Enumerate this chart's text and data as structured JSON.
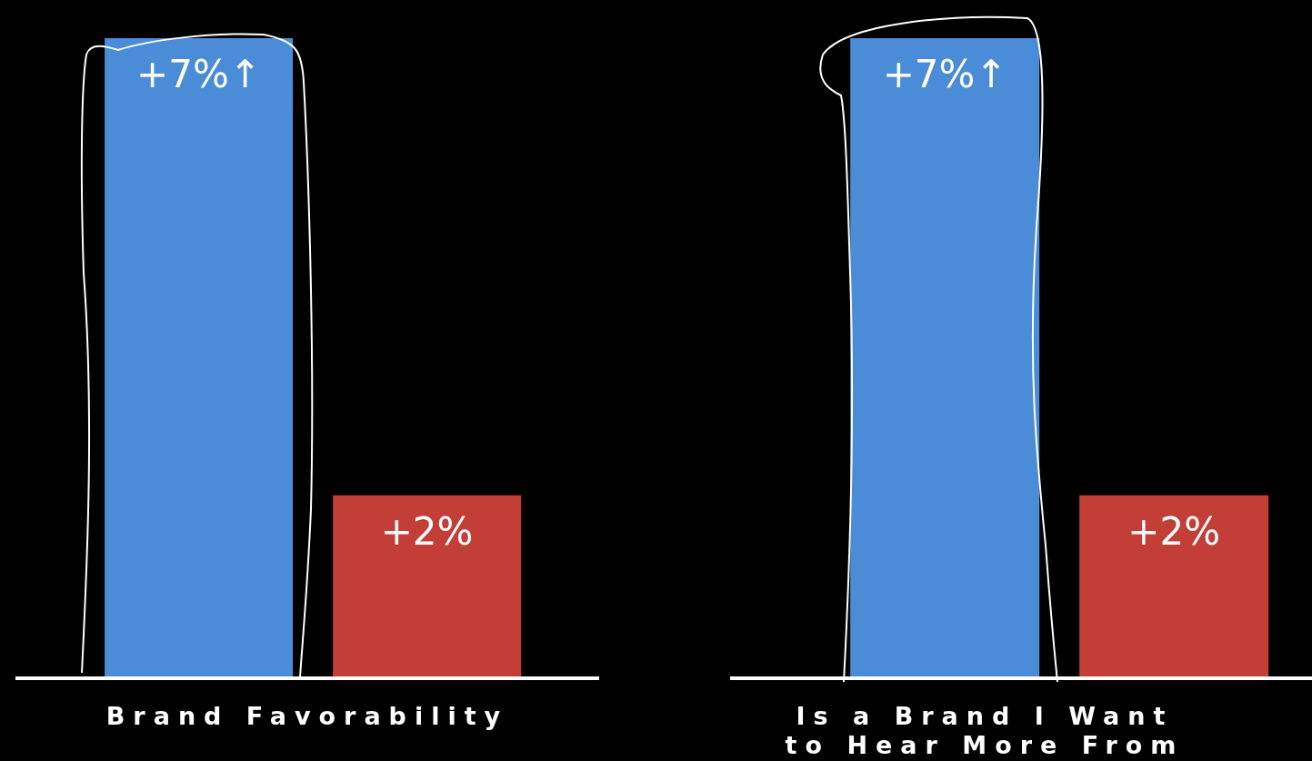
{
  "chart_data": [
    {
      "type": "bar",
      "xlabel": "Brand Favorability",
      "categories": [
        null,
        null
      ],
      "values": [
        7,
        2
      ],
      "colors": [
        "#4a8cd8",
        "#c23e36"
      ],
      "value_labels": [
        "+7%↑",
        "+2%"
      ]
    },
    {
      "type": "bar",
      "xlabel": "Is a Brand I Want to Hear More From",
      "categories": [
        null,
        null
      ],
      "values": [
        7,
        2
      ],
      "colors": [
        "#4a8cd8",
        "#c23e36"
      ],
      "value_labels": [
        "+7%↑",
        "+2%"
      ]
    }
  ]
}
